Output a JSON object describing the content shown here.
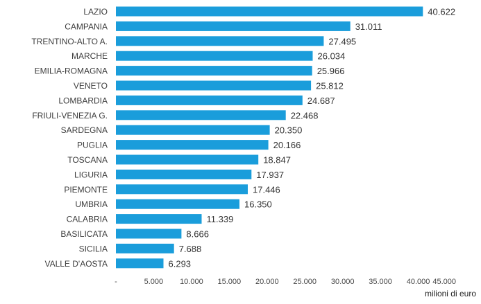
{
  "chart_data": {
    "type": "bar",
    "orientation": "horizontal",
    "categories": [
      "LAZIO",
      "CAMPANIA",
      "TRENTINO-ALTO A.",
      "MARCHE",
      "EMILIA-ROMAGNA",
      "VENETO",
      "LOMBARDIA",
      "FRIULI-VENEZIA G.",
      "SARDEGNA",
      "PUGLIA",
      "TOSCANA",
      "LIGURIA",
      "PIEMONTE",
      "UMBRIA",
      "CALABRIA",
      "BASILICATA",
      "SICILIA",
      "VALLE D'AOSTA"
    ],
    "values": [
      40622,
      31011,
      27495,
      26034,
      25966,
      25812,
      24687,
      22468,
      20350,
      20166,
      18847,
      17937,
      17446,
      16350,
      11339,
      8666,
      7688,
      6293
    ],
    "value_labels": [
      "40.622",
      "31.011",
      "27.495",
      "26.034",
      "25.966",
      "25.812",
      "24.687",
      "22.468",
      "20.350",
      "20.166",
      "18.847",
      "17.937",
      "17.446",
      "16.350",
      "11.339",
      "8.666",
      "7.688",
      "6.293"
    ],
    "xlim": [
      0,
      45000
    ],
    "x_ticks": [
      0,
      5000,
      10000,
      15000,
      20000,
      25000,
      30000,
      35000,
      40000,
      45000
    ],
    "x_tick_labels": [
      "-",
      "5.000",
      "10.000",
      "15.000",
      "20.000",
      "25.000",
      "30.000",
      "35.000",
      "40.000",
      "45.000"
    ],
    "xlabel": "milioni di euro",
    "title": "",
    "grid": false,
    "legend": "none",
    "bar_color": "#1a9ddb"
  }
}
